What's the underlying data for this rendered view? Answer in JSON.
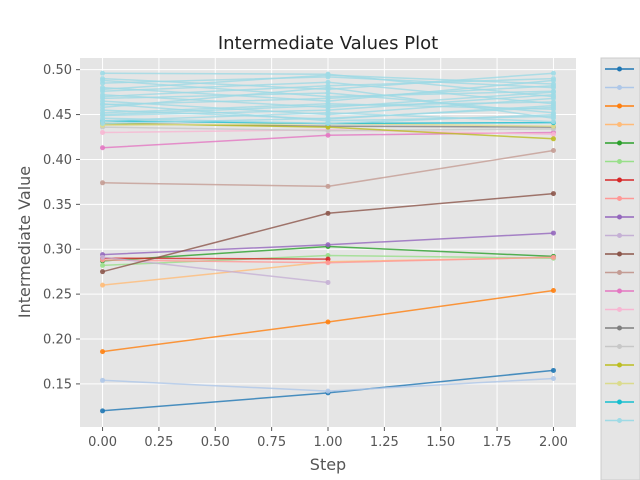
{
  "chart_data": {
    "type": "line",
    "title": "Intermediate Values Plot",
    "xlabel": "Step",
    "ylabel": "Intermediate Value",
    "xlim": [
      -0.1,
      2.1
    ],
    "ylim": [
      0.102,
      0.513
    ],
    "xticks": [
      0.0,
      0.25,
      0.5,
      0.75,
      1.0,
      1.25,
      1.5,
      1.75,
      2.0
    ],
    "xtick_labels": [
      "0.00",
      "0.25",
      "0.50",
      "0.75",
      "1.00",
      "1.25",
      "1.50",
      "1.75",
      "2.00"
    ],
    "yticks": [
      0.15,
      0.2,
      0.25,
      0.3,
      0.35,
      0.4,
      0.45,
      0.5
    ],
    "ytick_labels": [
      "0.15",
      "0.20",
      "0.25",
      "0.30",
      "0.35",
      "0.40",
      "0.45",
      "0.50"
    ],
    "grid": true,
    "legend_position": "right, outside plot",
    "legend_entries": [
      "",
      "",
      "",
      "",
      "",
      "",
      "",
      "",
      "",
      "",
      "",
      "",
      "",
      "",
      "",
      "",
      "",
      "",
      "",
      ""
    ],
    "legend_colors": [
      "#1f77b4",
      "#aec7e8",
      "#ff7f0e",
      "#ffbb78",
      "#2ca02c",
      "#98df8a",
      "#d62728",
      "#ff9896",
      "#9467bd",
      "#c5b0d5",
      "#8c564b",
      "#c49c94",
      "#e377c2",
      "#f7b6d2",
      "#7f7f7f",
      "#c7c7c7",
      "#bcbd22",
      "#dbdb8d",
      "#17becf",
      "#9edae5"
    ],
    "series": [
      {
        "color": "#1f77b4",
        "x": [
          0,
          1,
          2
        ],
        "values": [
          0.12,
          0.14,
          0.165
        ]
      },
      {
        "color": "#aec7e8",
        "x": [
          0,
          1,
          2
        ],
        "values": [
          0.154,
          0.142,
          0.156
        ]
      },
      {
        "color": "#ff7f0e",
        "x": [
          0,
          1,
          2
        ],
        "values": [
          0.186,
          0.219,
          0.254
        ]
      },
      {
        "color": "#ffbb78",
        "x": [
          0,
          1,
          2
        ],
        "values": [
          0.26,
          0.286,
          0.291
        ]
      },
      {
        "color": "#2ca02c",
        "x": [
          0,
          1,
          2
        ],
        "values": [
          0.287,
          0.303,
          0.292
        ]
      },
      {
        "color": "#98df8a",
        "x": [
          0,
          1,
          2
        ],
        "values": [
          0.282,
          0.293,
          0.29
        ]
      },
      {
        "color": "#d62728",
        "x": [
          0,
          1
        ],
        "values": [
          0.29,
          0.289
        ]
      },
      {
        "color": "#ff9896",
        "x": [
          0,
          1,
          2
        ],
        "values": [
          0.288,
          0.285,
          0.291
        ]
      },
      {
        "color": "#9467bd",
        "x": [
          0,
          1,
          2
        ],
        "values": [
          0.294,
          0.305,
          0.318
        ]
      },
      {
        "color": "#c5b0d5",
        "x": [
          0,
          1
        ],
        "values": [
          0.291,
          0.263
        ]
      },
      {
        "color": "#8c564b",
        "x": [
          0,
          1,
          2
        ],
        "values": [
          0.275,
          0.34,
          0.362
        ]
      },
      {
        "color": "#c49c94",
        "x": [
          0,
          1,
          2
        ],
        "values": [
          0.374,
          0.37,
          0.41
        ]
      },
      {
        "color": "#e377c2",
        "x": [
          0,
          1,
          2
        ],
        "values": [
          0.413,
          0.427,
          0.43
        ]
      },
      {
        "color": "#f7b6d2",
        "x": [
          0,
          1,
          2
        ],
        "values": [
          0.43,
          0.433,
          0.428
        ]
      },
      {
        "color": "#7f7f7f",
        "x": [
          0,
          1,
          2
        ],
        "values": [
          0.44,
          0.437,
          0.436
        ]
      },
      {
        "color": "#c7c7c7",
        "x": [
          0,
          1,
          2
        ],
        "values": [
          0.436,
          0.432,
          0.434
        ]
      },
      {
        "color": "#bcbd22",
        "x": [
          0,
          1,
          2
        ],
        "values": [
          0.44,
          0.436,
          0.423
        ]
      },
      {
        "color": "#dbdb8d",
        "x": [
          0,
          1,
          2
        ],
        "values": [
          0.438,
          0.44,
          0.437
        ]
      },
      {
        "color": "#17becf",
        "x": [
          0,
          1,
          2
        ],
        "values": [
          0.443,
          0.44,
          0.441
        ]
      },
      {
        "color": "#9edae5",
        "x": [
          0,
          1,
          2
        ],
        "values": [
          0.496,
          0.495,
          0.47
        ]
      },
      {
        "color": "#9edae5",
        "x": [
          0,
          1,
          2
        ],
        "values": [
          0.49,
          0.478,
          0.496
        ]
      },
      {
        "color": "#9edae5",
        "x": [
          0,
          1,
          2
        ],
        "values": [
          0.485,
          0.492,
          0.48
        ]
      },
      {
        "color": "#9edae5",
        "x": [
          0,
          1,
          2
        ],
        "values": [
          0.48,
          0.465,
          0.488
        ]
      },
      {
        "color": "#9edae5",
        "x": [
          0,
          1,
          2
        ],
        "values": [
          0.476,
          0.486,
          0.462
        ]
      },
      {
        "color": "#9edae5",
        "x": [
          0,
          1,
          2
        ],
        "values": [
          0.472,
          0.458,
          0.475
        ]
      },
      {
        "color": "#9edae5",
        "x": [
          0,
          1,
          2
        ],
        "values": [
          0.468,
          0.474,
          0.452
        ]
      },
      {
        "color": "#9edae5",
        "x": [
          0,
          1,
          2
        ],
        "values": [
          0.465,
          0.45,
          0.468
        ]
      },
      {
        "color": "#9edae5",
        "x": [
          0,
          1,
          2
        ],
        "values": [
          0.461,
          0.468,
          0.482
        ]
      },
      {
        "color": "#9edae5",
        "x": [
          0,
          1,
          2
        ],
        "values": [
          0.458,
          0.48,
          0.446
        ]
      },
      {
        "color": "#9edae5",
        "x": [
          0,
          1,
          2
        ],
        "values": [
          0.455,
          0.445,
          0.46
        ]
      },
      {
        "color": "#9edae5",
        "x": [
          0,
          1,
          2
        ],
        "values": [
          0.452,
          0.462,
          0.456
        ]
      },
      {
        "color": "#9edae5",
        "x": [
          0,
          1,
          2
        ],
        "values": [
          0.449,
          0.455,
          0.472
        ]
      },
      {
        "color": "#9edae5",
        "x": [
          0,
          1,
          2
        ],
        "values": [
          0.446,
          0.44,
          0.45
        ]
      },
      {
        "color": "#9edae5",
        "x": [
          0,
          1,
          2
        ],
        "values": [
          0.443,
          0.452,
          0.442
        ]
      },
      {
        "color": "#9edae5",
        "x": [
          0,
          1,
          2
        ],
        "values": [
          0.44,
          0.446,
          0.458
        ]
      },
      {
        "color": "#9edae5",
        "x": [
          0,
          1,
          2
        ],
        "values": [
          0.478,
          0.494,
          0.484
        ]
      },
      {
        "color": "#9edae5",
        "x": [
          0,
          1,
          2
        ],
        "values": [
          0.488,
          0.47,
          0.476
        ]
      },
      {
        "color": "#9edae5",
        "x": [
          0,
          1,
          2
        ],
        "values": [
          0.47,
          0.482,
          0.49
        ]
      },
      {
        "color": "#9edae5",
        "x": [
          0,
          1,
          2
        ],
        "values": [
          0.462,
          0.443,
          0.448
        ]
      },
      {
        "color": "#9edae5",
        "x": [
          0,
          1,
          2
        ],
        "values": [
          0.45,
          0.46,
          0.464
        ]
      }
    ]
  }
}
